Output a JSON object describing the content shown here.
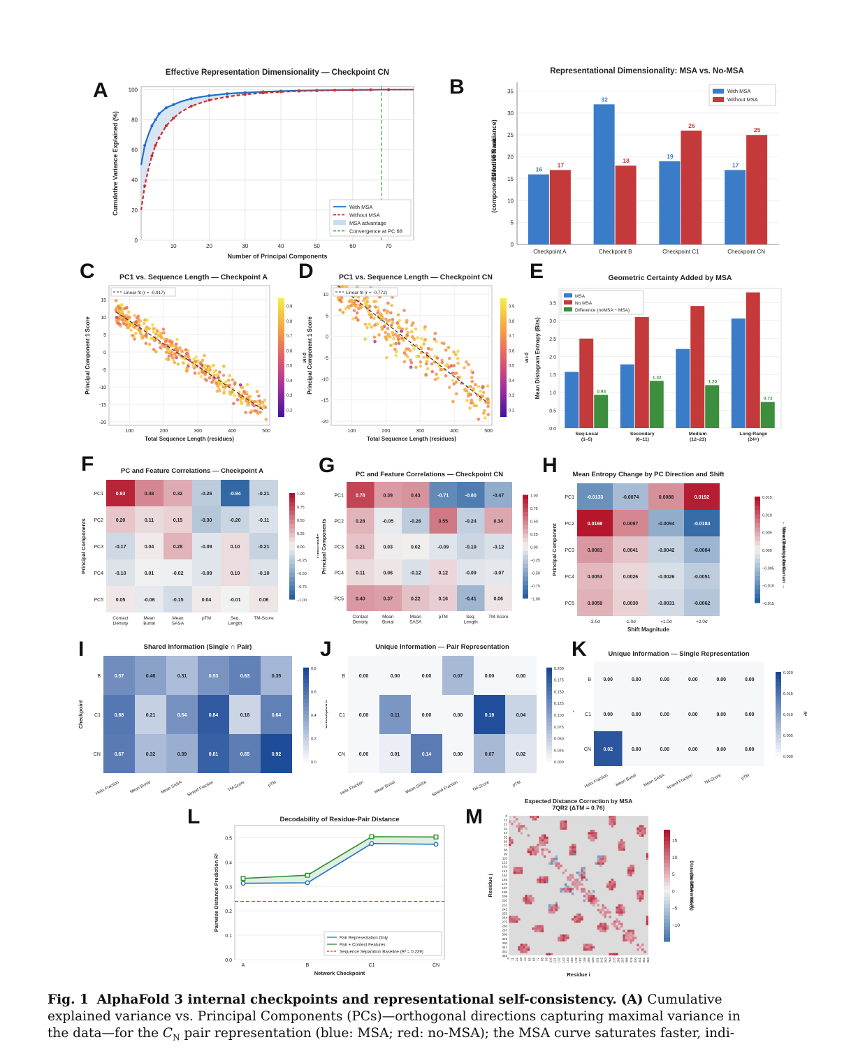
{
  "panel_letters": [
    "A",
    "B",
    "C",
    "D",
    "E",
    "F",
    "G",
    "H",
    "I",
    "J",
    "K",
    "L",
    "M"
  ],
  "caption": {
    "fig_label": "Fig. 1",
    "title": "AlphaFold 3 internal checkpoints and representational self-consistency.",
    "panel_ref": "(A)",
    "line1_rest": "Cumulative",
    "line2": "explained variance vs. Principal Components (PCs)—orthogonal directions capturing maximal variance in",
    "line3_a": "the data—for the",
    "line3_math": "C",
    "line3_sub": "N",
    "line3_b": "pair representation (blue: MSA; red: no-MSA); the MSA curve saturates faster, indi-"
  },
  "chart_data": [
    {
      "id": "A",
      "type": "line",
      "title": "Effective Representation Dimensionality — Checkpoint CN",
      "xlabel": "Number of Principal Components",
      "ylabel": "Cumulative Variance Explained (%)",
      "xlim": [
        1,
        77
      ],
      "ylim": [
        0,
        102
      ],
      "xticks": [
        10,
        20,
        30,
        40,
        50,
        60,
        70
      ],
      "yticks": [
        0,
        20,
        40,
        60,
        80,
        100
      ],
      "series": [
        {
          "name": "With MSA",
          "color": "#1f6fc4",
          "x": [
            1,
            2,
            3,
            4,
            5,
            6,
            8,
            10,
            12,
            15,
            18,
            20,
            25,
            30,
            35,
            40,
            45,
            50,
            55,
            60,
            65,
            70,
            77
          ],
          "y": [
            50,
            63,
            70,
            76,
            80,
            84,
            88,
            90,
            92,
            94,
            95.3,
            96,
            97.3,
            98,
            98.6,
            99,
            99.3,
            99.5,
            99.7,
            99.8,
            99.9,
            100,
            100
          ]
        },
        {
          "name": "Without MSA",
          "color": "#cc2f2f",
          "x": [
            1,
            2,
            3,
            4,
            5,
            6,
            8,
            10,
            12,
            15,
            18,
            20,
            25,
            30,
            35,
            40,
            45,
            50,
            55,
            60,
            65,
            70,
            77
          ],
          "y": [
            20,
            36,
            47,
            56,
            63,
            68,
            76,
            81,
            85,
            89,
            91.5,
            93,
            95.3,
            96.8,
            97.8,
            98.5,
            99,
            99.3,
            99.6,
            99.8,
            99.9,
            100,
            100
          ]
        }
      ],
      "fill_label": "MSA advantage",
      "vline": {
        "x": 68,
        "label": "Convergence at PC 68",
        "color": "#4caf50"
      }
    },
    {
      "id": "B",
      "type": "bar",
      "title": "Representational Dimensionality: MSA vs. No-MSA",
      "ylabel": "Effective Rank\n(components for 95% variance)",
      "categories": [
        "Checkpoint A",
        "Checkpoint B",
        "Checkpoint C1",
        "Checkpoint CN"
      ],
      "series": [
        {
          "name": "With MSA",
          "color": "#3a7cc7",
          "values": [
            16,
            32,
            19,
            17
          ]
        },
        {
          "name": "Without MSA",
          "color": "#c43a3a",
          "values": [
            17,
            18,
            26,
            25
          ]
        }
      ],
      "ylim": [
        0,
        37
      ],
      "yticks": [
        0,
        5,
        10,
        15,
        20,
        25,
        30,
        35
      ],
      "legend": "top-right"
    },
    {
      "id": "C",
      "type": "scatter",
      "title": "PC1 vs. Sequence Length — Checkpoint A",
      "xlabel": "Total Sequence Length (residues)",
      "ylabel": "Principal Component 1 Score",
      "xlim": [
        40,
        510
      ],
      "ylim": [
        -21,
        19
      ],
      "xticks": [
        100,
        200,
        300,
        400,
        500
      ],
      "yticks": [
        -20,
        -15,
        -10,
        -5,
        0,
        5,
        10,
        15
      ],
      "fit_label": "Linear fit  (r = -0.917)",
      "colorbar_label": "pTM",
      "colorbar_ticks": [
        0.2,
        0.3,
        0.4,
        0.5,
        0.6,
        0.7,
        0.8,
        0.9
      ],
      "fit": [
        [
          60,
          11.5
        ],
        [
          490,
          -16.5
        ]
      ],
      "cloud": {
        "slope": -0.064,
        "x0": 60,
        "y0": 11.5,
        "spread": 2.4,
        "n": 380
      }
    },
    {
      "id": "D",
      "type": "scatter",
      "title": "PC1 vs. Sequence Length — Checkpoint CN",
      "xlabel": "Total Sequence Length (residues)",
      "ylabel": "Principal Component 1 Score",
      "xlim": [
        40,
        510
      ],
      "ylim": [
        -21,
        12
      ],
      "xticks": [
        100,
        200,
        300,
        400,
        500
      ],
      "yticks": [
        -20,
        -15,
        -10,
        -5,
        0,
        5,
        10
      ],
      "fit_label": "Linear fit  (r = -0.772)",
      "colorbar_label": "pTM",
      "colorbar_ticks": [
        0.2,
        0.3,
        0.4,
        0.5,
        0.6,
        0.7,
        0.8,
        0.9
      ],
      "fit": [
        [
          60,
          12
        ],
        [
          495,
          -15.5
        ]
      ],
      "cloud": {
        "slope": -0.063,
        "x0": 60,
        "y0": 12,
        "spread": 4.2,
        "n": 340
      }
    },
    {
      "id": "E",
      "type": "bar",
      "title": "Geometric Certainty Added by MSA",
      "ylabel": "Mean Distogram Entropy (Bits)",
      "categories": [
        "Seq-Local\n(1–5)",
        "Secondary\n(6–11)",
        "Medium\n(12–23)",
        "Long-Range\n(24+)"
      ],
      "series": [
        {
          "name": "MSA",
          "color": "#3a7cc7",
          "values": [
            1.57,
            1.78,
            2.21,
            3.06
          ]
        },
        {
          "name": "No MSA",
          "color": "#c43a3a",
          "values": [
            2.5,
            3.1,
            3.41,
            3.79
          ]
        },
        {
          "name": "Difference (noMSA − MSA)",
          "color": "#3c8f3c",
          "values": [
            0.93,
            1.32,
            1.2,
            0.73
          ]
        }
      ],
      "diff_labels": [
        "0.93",
        "1.32",
        "1.20",
        "0.73"
      ],
      "ylim": [
        0,
        3.9
      ],
      "yticks": [
        0.0,
        0.5,
        1.0,
        1.5,
        2.0,
        2.5,
        3.0,
        3.5
      ],
      "legend": "top-left"
    },
    {
      "id": "F",
      "type": "heatmap",
      "title": "PC and Feature Correlations — Checkpoint A",
      "ylabel": "Principal Components",
      "rows": [
        "PC1",
        "PC2",
        "PC3",
        "PC4",
        "PC5"
      ],
      "cols": [
        "Contact\nDensity",
        "Mean\nBurial",
        "Mean\nSASA",
        "pTM",
        "Seq.\nLength",
        "TM-Score"
      ],
      "values": [
        [
          0.93,
          0.48,
          0.32,
          -0.26,
          -0.94,
          -0.21
        ],
        [
          0.2,
          0.11,
          0.15,
          -0.3,
          -0.2,
          -0.11
        ],
        [
          -0.17,
          0.04,
          0.28,
          -0.09,
          0.1,
          -0.21
        ],
        [
          -0.1,
          0.01,
          -0.02,
          -0.09,
          0.1,
          -0.1
        ],
        [
          0.05,
          -0.06,
          -0.15,
          0.04,
          -0.01,
          0.06
        ]
      ],
      "colorbar_label": "Spearman r",
      "cmap": "diverging",
      "vmin": -1,
      "vmax": 1,
      "colorbar_ticks": [
        "1.00",
        "0.75",
        "0.50",
        "0.25",
        "0.00",
        "−0.25",
        "−0.50",
        "−0.75",
        "−1.00"
      ]
    },
    {
      "id": "G",
      "type": "heatmap",
      "title": "PC and Feature Correlations — Checkpoint CN",
      "ylabel": "Principal Components",
      "rows": [
        "PC1",
        "PC2",
        "PC3",
        "PC4",
        "PC5"
      ],
      "cols": [
        "Contact\nDensity",
        "Mean\nBurial",
        "Mean\nSASA",
        "pTM",
        "Seq.\nLength",
        "TM-Score"
      ],
      "values": [
        [
          0.78,
          0.39,
          0.43,
          -0.71,
          -0.8,
          -0.47
        ],
        [
          0.28,
          -0.05,
          -0.26,
          0.55,
          -0.24,
          0.34
        ],
        [
          0.21,
          0.03,
          0.02,
          -0.09,
          -0.19,
          -0.12
        ],
        [
          0.11,
          0.06,
          -0.12,
          0.12,
          -0.09,
          -0.07
        ],
        [
          0.4,
          0.37,
          0.22,
          0.16,
          -0.41,
          0.06
        ]
      ],
      "colorbar_label": "Spearman r",
      "cmap": "diverging",
      "vmin": -1,
      "vmax": 1,
      "colorbar_ticks": [
        "1.00",
        "0.75",
        "0.50",
        "0.25",
        "0.00",
        "−0.25",
        "−0.50",
        "−0.75",
        "−1.00"
      ]
    },
    {
      "id": "H",
      "type": "heatmap",
      "title": "Mean Entropy Change by PC Direction and Shift",
      "xlabel": "Shift Magnitude",
      "ylabel": "Principal Component",
      "rows": [
        "PC1",
        "PC2",
        "PC3",
        "PC4",
        "PC5"
      ],
      "cols": [
        "-2.0σ",
        "-1.0σ",
        "+1.0σ",
        "+2.0σ"
      ],
      "values": [
        [
          -0.0133,
          -0.0074,
          0.0088,
          0.0192
        ],
        [
          0.0198,
          0.0097,
          -0.0094,
          -0.0184
        ],
        [
          0.0081,
          0.0041,
          -0.0042,
          -0.0084
        ],
        [
          0.0053,
          0.0026,
          -0.0026,
          -0.0051
        ],
        [
          0.0059,
          0.003,
          -0.0031,
          -0.0062
        ]
      ],
      "labels": [
        [
          "-0.0133",
          "-0.0074",
          "0.0088",
          "0.0192"
        ],
        [
          "0.0198",
          "0.0097",
          "-0.0094",
          "-0.0184"
        ],
        [
          "0.0081",
          "0.0041",
          "-0.0042",
          "-0.0084"
        ],
        [
          "0.0053",
          "0.0026",
          "-0.0026",
          "-0.0051"
        ],
        [
          "0.0059",
          "0.0030",
          "-0.0031",
          "-0.0062"
        ]
      ],
      "colorbar_label": "Mean Entropy Delta\n← More Certain   Less Certain →",
      "cmap": "diverging",
      "vmin": -0.02,
      "vmax": 0.02,
      "colorbar_ticks": [
        "0.015",
        "0.010",
        "0.005",
        "0.000",
        "−0.005",
        "−0.010",
        "−0.015"
      ]
    },
    {
      "id": "I",
      "type": "heatmap",
      "title": "Shared Information (Single ∩ Pair)",
      "ylabel": "Checkpoint",
      "rows": [
        "B",
        "C1",
        "CN"
      ],
      "cols": [
        "Helix Fraction",
        "Mean Burial",
        "Mean SASA",
        "Strand Fraction",
        "TM-Score",
        "pTM"
      ],
      "values": [
        [
          0.57,
          0.46,
          0.31,
          0.53,
          0.63,
          0.35
        ],
        [
          0.68,
          0.21,
          0.54,
          0.84,
          0.18,
          0.64
        ],
        [
          0.67,
          0.32,
          0.39,
          0.81,
          0.65,
          0.92
        ]
      ],
      "colorbar_label": "R²",
      "cmap": "blues",
      "vmin": 0,
      "vmax": 0.95,
      "colorbar_ticks": [
        "0.8",
        "0.6",
        "0.4",
        "0.2",
        "0.0"
      ]
    },
    {
      "id": "J",
      "type": "heatmap",
      "title": "Unique Information — Pair Representation",
      "ylabel": "Checkpoint",
      "rows": [
        "B",
        "C1",
        "CN"
      ],
      "cols": [
        "Helix Fraction",
        "Mean Burial",
        "Mean SASA",
        "Strand Fraction",
        "TM-Score",
        "pTM"
      ],
      "values": [
        [
          0.0,
          0.0,
          0.0,
          0.07,
          0.0,
          0.0
        ],
        [
          0.0,
          0.11,
          0.0,
          0.0,
          0.19,
          0.04
        ],
        [
          0.0,
          0.01,
          0.14,
          0.0,
          0.07,
          0.02
        ]
      ],
      "colorbar_label": "R²",
      "cmap": "blues",
      "vmin": 0,
      "vmax": 0.2,
      "colorbar_ticks": [
        "0.200",
        "0.175",
        "0.150",
        "0.125",
        "0.100",
        "0.075",
        "0.050",
        "0.025",
        "0.000"
      ]
    },
    {
      "id": "K",
      "type": "heatmap",
      "title": "Unique Information — Single Representation",
      "ylabel": "Checkpoint",
      "rows": [
        "B",
        "C1",
        "CN"
      ],
      "cols": [
        "Helix Fraction",
        "Mean Burial",
        "Mean SASA",
        "Strand Fraction",
        "TM-Score",
        "pTM"
      ],
      "values": [
        [
          0.0,
          0.0,
          0.0,
          0.0,
          0.0,
          0.0
        ],
        [
          0.0,
          0.0,
          0.0,
          0.0,
          0.0,
          0.0
        ],
        [
          0.02,
          0.0,
          0.0,
          0.0,
          0.0,
          0.0
        ]
      ],
      "colorbar_label": "R²",
      "cmap": "blues",
      "vmin": 0,
      "vmax": 0.022,
      "colorbar_ticks": [
        "0.020",
        "0.015",
        "0.010",
        "0.005",
        "0.000"
      ]
    },
    {
      "id": "L",
      "type": "line",
      "title": "Decodability of Residue-Pair Distance",
      "xlabel": "Network Checkpoint",
      "ylabel": "Pairwise Distance Prediction  R²",
      "categories": [
        "A",
        "B",
        "C1",
        "CN"
      ],
      "series": [
        {
          "name": "Pair Representation Only",
          "color": "#1f6fc4",
          "values": [
            0.313,
            0.315,
            0.476,
            0.473
          ],
          "marker": "circle"
        },
        {
          "name": "Pair + Context Features",
          "color": "#2e8b2e",
          "values": [
            0.333,
            0.346,
            0.504,
            0.503
          ],
          "marker": "square"
        }
      ],
      "baseline": {
        "name": "Sequence Separation Baseline  (R² = 0.239)",
        "value": 0.239,
        "color": "#cc2f2f"
      },
      "ylim": [
        0,
        0.55
      ],
      "yticks": [
        0.0,
        0.1,
        0.2,
        0.3,
        0.4,
        0.5
      ],
      "legend": "bottom-right"
    },
    {
      "id": "M",
      "type": "heatmap",
      "title": "Expected Distance Correction by MSA\n7QR2  (ΔTM = 0.76)",
      "xlabel": "Residue i",
      "ylabel": "Residue j",
      "ticks": [
        0,
        11,
        22,
        33,
        44,
        55,
        66,
        77,
        88,
        99,
        110,
        121,
        132,
        143,
        154,
        165,
        176,
        187,
        198,
        209,
        220,
        231,
        242,
        253,
        264,
        275,
        286,
        297,
        308,
        319,
        330,
        341,
        352,
        363
      ],
      "colorbar_label": "Distance Difference (Å)\n(No-MSA − MSA)",
      "colorbar_ticks": [
        "15",
        "10",
        "5",
        "0",
        "−5",
        "−10"
      ],
      "vmin": -15,
      "vmax": 18
    }
  ]
}
